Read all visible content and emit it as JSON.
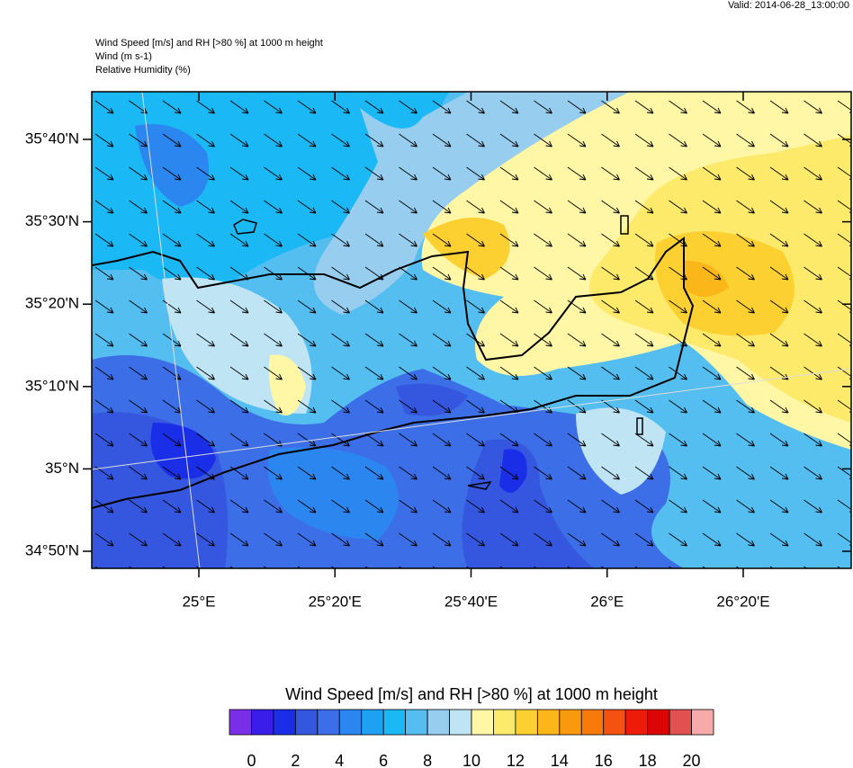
{
  "valid": "Valid: 2014-06-28_13:00:00",
  "title_lines": [
    "Wind Speed [m/s] and RH [>80 %] at 1000 m height",
    "Wind   (m s-1)",
    "Relative Humidity   (%)"
  ],
  "lat_labels": [
    "35°40'N",
    "35°30'N",
    "35°20'N",
    "35°10'N",
    "35°N",
    "34°50'N"
  ],
  "lon_labels": [
    "25°E",
    "25°20'E",
    "25°40'E",
    "26°E",
    "26°20'E"
  ],
  "colorbar": {
    "title": "Wind Speed [m/s] and RH [>80 %] at 1000 m height",
    "colors": [
      "#7b2ee8",
      "#3a1de8",
      "#1a2ee8",
      "#3557e0",
      "#3c6ee8",
      "#2b86f0",
      "#1ea0f5",
      "#1ab8f5",
      "#55bef0",
      "#97cdee",
      "#bfe4f4",
      "#fff7a5",
      "#fde96a",
      "#fcd030",
      "#fbb71a",
      "#f99a0e",
      "#f77a0a",
      "#f55110",
      "#ee1a0a",
      "#dc0505",
      "#e25050",
      "#f8aaaa"
    ],
    "ticks": [
      0,
      2,
      4,
      6,
      8,
      10,
      12,
      14,
      16,
      18,
      20
    ]
  }
}
